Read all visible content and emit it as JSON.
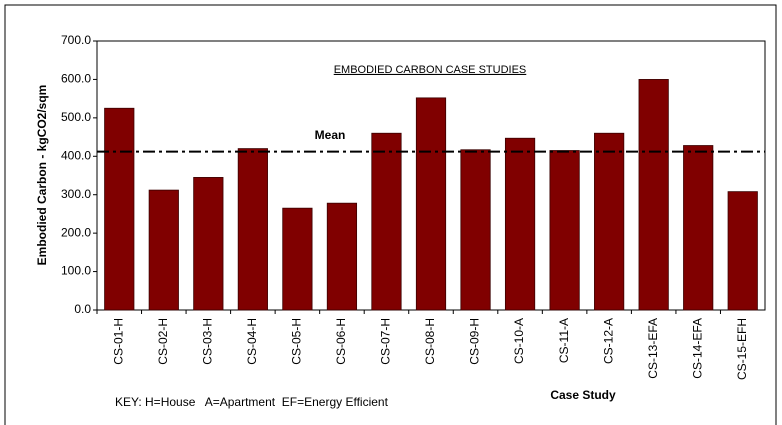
{
  "chart_data": {
    "type": "bar",
    "annotation": "EMBODIED CARBON CASE STUDIES",
    "y_label": "Embodied Carbon - kgCO2/sqm",
    "x_label": "Case Study",
    "key": "KEY: H=House   A=Apartment  EF=Energy Efficient",
    "categories": [
      "CS-01-H",
      "CS-02-H",
      "CS-03-H",
      "CS-04-H",
      "CS-05-H",
      "CS-06-H",
      "CS-07-H",
      "CS-08-H",
      "CS-09-H",
      "CS-10-A",
      "CS-11-A",
      "CS-12-A",
      "CS-13-EFA",
      "CS-14-EFA",
      "CS-15-EFH"
    ],
    "values": [
      525,
      312,
      345,
      420,
      265,
      278,
      460,
      552,
      417,
      447,
      415,
      460,
      600,
      428,
      308
    ],
    "color": "#800000",
    "mean": 412,
    "mean_label": "Mean",
    "ylim": [
      0,
      700
    ],
    "yticks": [
      {
        "value": 0,
        "label": "0.0"
      },
      {
        "value": 100,
        "label": "100.0"
      },
      {
        "value": 200,
        "label": "200.0"
      },
      {
        "value": 300,
        "label": "300.0"
      },
      {
        "value": 400,
        "label": "400.0"
      },
      {
        "value": 500,
        "label": "500.0"
      },
      {
        "value": 600,
        "label": "600.0"
      },
      {
        "value": 700,
        "label": "700.0"
      }
    ]
  }
}
